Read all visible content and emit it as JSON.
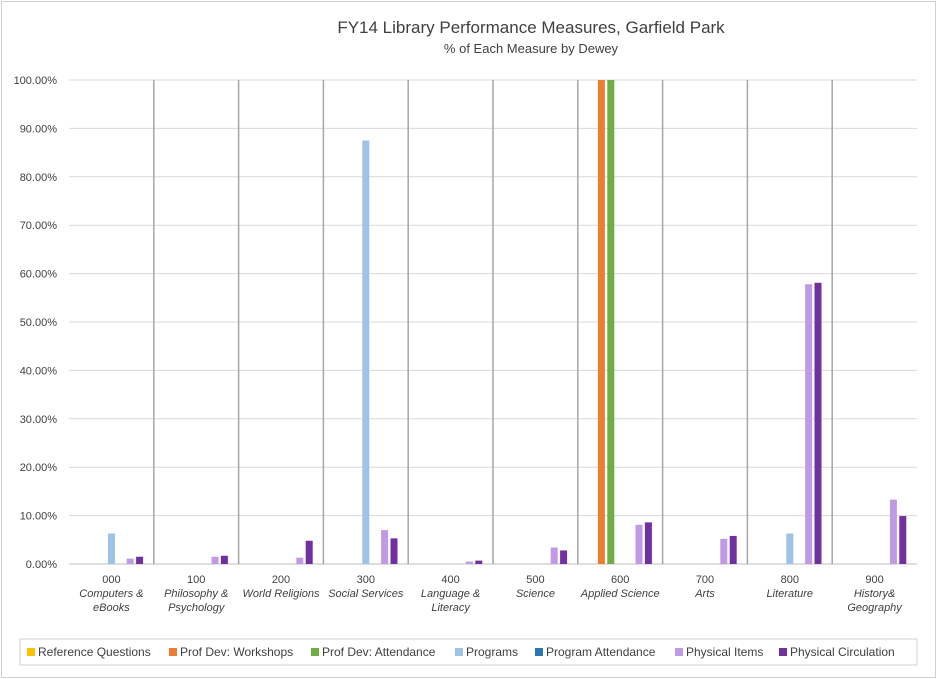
{
  "chart_data": {
    "type": "bar",
    "title": "FY14 Library Performance Measures, Garfield Park",
    "subtitle": "% of Each Measure by Dewey",
    "ylim": [
      0,
      100
    ],
    "y_ticks": [
      "0.00%",
      "10.00%",
      "20.00%",
      "30.00%",
      "40.00%",
      "50.00%",
      "60.00%",
      "70.00%",
      "80.00%",
      "90.00%",
      "100.00%"
    ],
    "categories": [
      [
        "000",
        "Computers &",
        "eBooks"
      ],
      [
        "100",
        "Philosophy &",
        "Psychology"
      ],
      [
        "200",
        "World Religions"
      ],
      [
        "300",
        "Social Services"
      ],
      [
        "400",
        "Language &",
        "Literacy"
      ],
      [
        "500",
        "Science"
      ],
      [
        "600",
        "Applied Science"
      ],
      [
        "700",
        "Arts"
      ],
      [
        "800",
        "Literature"
      ],
      [
        "900",
        "History&",
        "Geography"
      ]
    ],
    "series": [
      {
        "name": "Reference Questions",
        "color": "#FFC000",
        "values": [
          0,
          0,
          0,
          0,
          0,
          0,
          0,
          0,
          0,
          0
        ]
      },
      {
        "name": "Prof Dev: Workshops",
        "color": "#ED7D31",
        "values": [
          0,
          0,
          0,
          0,
          0,
          0,
          100,
          0,
          0,
          0
        ]
      },
      {
        "name": "Prof Dev: Attendance",
        "color": "#70AD47",
        "values": [
          0,
          0,
          0,
          0,
          0,
          0,
          100,
          0,
          0,
          0
        ]
      },
      {
        "name": "Programs",
        "color": "#9DC3E6",
        "values": [
          6.3,
          0,
          0,
          87.5,
          0,
          0,
          0,
          0,
          6.3,
          0
        ]
      },
      {
        "name": "Program Attendance",
        "color": "#2E75B6",
        "values": [
          0,
          0,
          0,
          0,
          0,
          0,
          0,
          0,
          0,
          0
        ]
      },
      {
        "name": "Physical Items",
        "color": "#C09AE4",
        "values": [
          1.1,
          1.5,
          1.3,
          7.0,
          0.5,
          3.4,
          8.1,
          5.2,
          57.8,
          13.3
        ]
      },
      {
        "name": "Physical Circulation",
        "color": "#7030A0",
        "values": [
          1.5,
          1.7,
          4.8,
          5.3,
          0.7,
          2.8,
          8.6,
          5.8,
          58.1,
          9.9
        ]
      }
    ],
    "legend_position": "bottom"
  }
}
